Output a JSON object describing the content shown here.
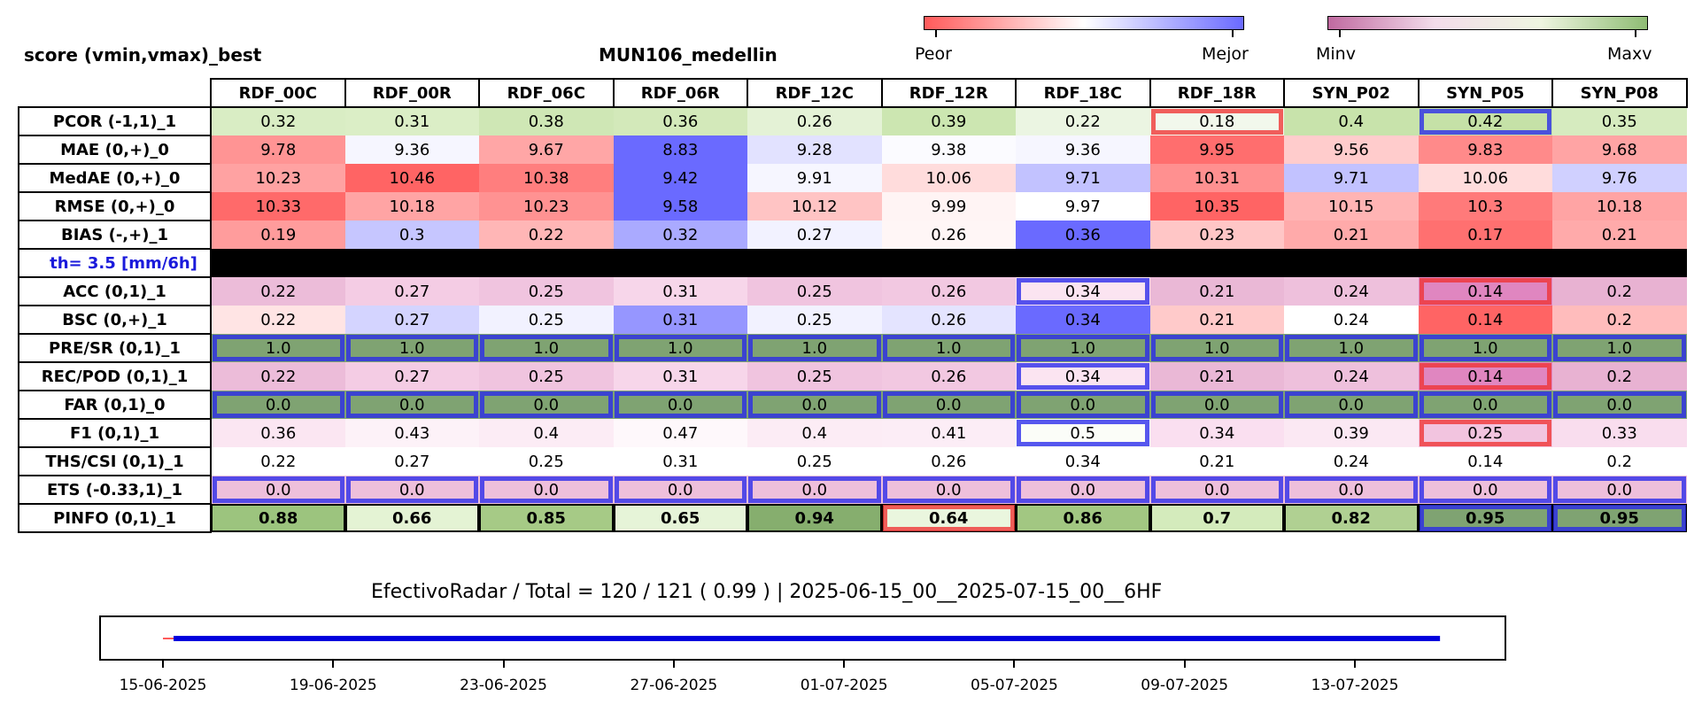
{
  "titles": {
    "left": "score (vmin,vmax)_best",
    "center": "MUN106_medellin"
  },
  "colorbars": {
    "score": {
      "low_label": "Peor",
      "high_label": "Mejor",
      "low_color": "#ff5a5a",
      "mid_color": "#ffffff",
      "high_color": "#6a6aff"
    },
    "range": {
      "low_label": "Minv",
      "high_label": "Maxv",
      "low_color": "#c06aa0",
      "high_color": "#8fbc74"
    }
  },
  "chart_data": {
    "type": "heatmap",
    "columns": [
      "RDF_00C",
      "RDF_00R",
      "RDF_06C",
      "RDF_06R",
      "RDF_12C",
      "RDF_12R",
      "RDF_18C",
      "RDF_18R",
      "SYN_P02",
      "SYN_P05",
      "SYN_P08"
    ],
    "threshold_label": "th= 3.5 [mm/6h]",
    "rows": [
      {
        "label": "PCOR (-1,1)_1",
        "values": [
          "0.32",
          "0.31",
          "0.38",
          "0.36",
          "0.26",
          "0.39",
          "0.22",
          "0.18",
          "0.4",
          "0.42",
          "0.35"
        ],
        "colors": [
          "#d9edc4",
          "#dbeec6",
          "#cfe7b5",
          "#d3e9ba",
          "#e4f2d6",
          "#cce6b1",
          "#ebf5e2",
          "#f2f8ec",
          "#c8e3ab",
          "#c5e1a7",
          "#d6ebbf"
        ],
        "best": [
          9
        ],
        "worst": [
          7
        ]
      },
      {
        "label": "MAE (0,+)_0",
        "values": [
          "9.78",
          "9.36",
          "9.67",
          "8.83",
          "9.28",
          "9.38",
          "9.36",
          "9.95",
          "9.56",
          "9.83",
          "9.68"
        ],
        "colors": [
          "#ff9494",
          "#f6f6ff",
          "#ffa6a6",
          "#6a6aff",
          "#e2e2ff",
          "#fbfbff",
          "#f6f6ff",
          "#ff6e6e",
          "#ffcccc",
          "#ff8a8a",
          "#ffa4a4"
        ],
        "best": [],
        "worst": []
      },
      {
        "label": "MedAE (0,+)_0",
        "values": [
          "10.23",
          "10.46",
          "10.38",
          "9.42",
          "9.91",
          "10.06",
          "9.71",
          "10.31",
          "9.71",
          "10.06",
          "9.76"
        ],
        "colors": [
          "#ffa2a2",
          "#ff6464",
          "#ff7e7e",
          "#6a6aff",
          "#f6f6ff",
          "#ffdcdc",
          "#c2c2ff",
          "#ff9090",
          "#c2c2ff",
          "#ffdcdc",
          "#d0d0ff"
        ],
        "best": [],
        "worst": []
      },
      {
        "label": "RMSE (0,+)_0",
        "values": [
          "10.33",
          "10.18",
          "10.23",
          "9.58",
          "10.12",
          "9.99",
          "9.97",
          "10.35",
          "10.15",
          "10.3",
          "10.18"
        ],
        "colors": [
          "#ff6a6a",
          "#ffa4a4",
          "#ff9292",
          "#6a6aff",
          "#ffc4c4",
          "#fff4f4",
          "#ffffff",
          "#ff6464",
          "#ffb4b4",
          "#ff7a7a",
          "#ffa4a4"
        ],
        "best": [],
        "worst": []
      },
      {
        "label": "BIAS (-,+)_1",
        "values": [
          "0.19",
          "0.3",
          "0.22",
          "0.32",
          "0.27",
          "0.26",
          "0.36",
          "0.23",
          "0.21",
          "0.17",
          "0.21"
        ],
        "colors": [
          "#ff9c9c",
          "#c6c6ff",
          "#ffb6b6",
          "#aaaaff",
          "#f2f2ff",
          "#fff6f6",
          "#6a6aff",
          "#ffc6c6",
          "#ffaaaa",
          "#ff7070",
          "#ffaaaa"
        ],
        "best": [],
        "worst": []
      },
      {
        "label": "ACC (0,1)_1",
        "values": [
          "0.22",
          "0.27",
          "0.25",
          "0.31",
          "0.25",
          "0.26",
          "0.34",
          "0.21",
          "0.24",
          "0.14",
          "0.2"
        ],
        "colors": [
          "#ecbcd9",
          "#f4ccE4",
          "#f0c4df",
          "#f7d6ea",
          "#f0c4df",
          "#f2c8e1",
          "#fbe4f1",
          "#eab8d6",
          "#eec0dc",
          "#e086c0",
          "#e8b2d2"
        ],
        "best": [
          6
        ],
        "worst": [
          9
        ]
      },
      {
        "label": "BSC (0,+)_1",
        "values": [
          "0.22",
          "0.27",
          "0.25",
          "0.31",
          "0.25",
          "0.26",
          "0.34",
          "0.21",
          "0.24",
          "0.14",
          "0.2"
        ],
        "colors": [
          "#ffe4e4",
          "#d4d4ff",
          "#f2f2ff",
          "#9696ff",
          "#f2f2ff",
          "#e4e4ff",
          "#6a6aff",
          "#ffcaca",
          "#ffffff",
          "#ff6464",
          "#ffbcbc"
        ],
        "best": [],
        "worst": []
      },
      {
        "label": "PRE/SR (0,1)_1",
        "values": [
          "1.0",
          "1.0",
          "1.0",
          "1.0",
          "1.0",
          "1.0",
          "1.0",
          "1.0",
          "1.0",
          "1.0",
          "1.0"
        ],
        "colors": [
          "#7fa372",
          "#7fa372",
          "#7fa372",
          "#7fa372",
          "#7fa372",
          "#7fa372",
          "#7fa372",
          "#7fa372",
          "#7fa372",
          "#7fa372",
          "#7fa372"
        ],
        "best": [
          0,
          1,
          2,
          3,
          4,
          5,
          6,
          7,
          8,
          9,
          10
        ],
        "worst": []
      },
      {
        "label": "REC/POD (0,1)_1",
        "values": [
          "0.22",
          "0.27",
          "0.25",
          "0.31",
          "0.25",
          "0.26",
          "0.34",
          "0.21",
          "0.24",
          "0.14",
          "0.2"
        ],
        "colors": [
          "#ecbcd9",
          "#f4cce4",
          "#f0c4df",
          "#f7d6ea",
          "#f0c4df",
          "#f2c8e1",
          "#fbe4f1",
          "#eab8d6",
          "#eec0dc",
          "#e086c0",
          "#e8b2d2"
        ],
        "best": [
          6
        ],
        "worst": [
          9
        ]
      },
      {
        "label": "FAR (0,1)_0",
        "values": [
          "0.0",
          "0.0",
          "0.0",
          "0.0",
          "0.0",
          "0.0",
          "0.0",
          "0.0",
          "0.0",
          "0.0",
          "0.0"
        ],
        "colors": [
          "#7fa372",
          "#7fa372",
          "#7fa372",
          "#7fa372",
          "#7fa372",
          "#7fa372",
          "#7fa372",
          "#7fa372",
          "#7fa372",
          "#7fa372",
          "#7fa372"
        ],
        "best": [
          0,
          1,
          2,
          3,
          4,
          5,
          6,
          7,
          8,
          9,
          10
        ],
        "worst": []
      },
      {
        "label": "F1 (0,1)_1",
        "values": [
          "0.36",
          "0.43",
          "0.4",
          "0.47",
          "0.4",
          "0.41",
          "0.5",
          "0.34",
          "0.39",
          "0.25",
          "0.33"
        ],
        "colors": [
          "#fbe6f2",
          "#fdf2f8",
          "#fcecf5",
          "#fef8fb",
          "#fcecf5",
          "#fcedf6",
          "#fbfdf8",
          "#fadff0",
          "#fbe8f3",
          "#f2c4df",
          "#f9ddee"
        ],
        "best": [
          6
        ],
        "worst": [
          9
        ]
      },
      {
        "label": "THS/CSI (0,1)_1",
        "values": [
          "0.22",
          "0.27",
          "0.25",
          "0.31",
          "0.25",
          "0.26",
          "0.34",
          "0.21",
          "0.24",
          "0.14",
          "0.2"
        ],
        "colors": [
          "#ffffff",
          "#ffffff",
          "#ffffff",
          "#ffffff",
          "#ffffff",
          "#ffffff",
          "#ffffff",
          "#ffffff",
          "#ffffff",
          "#ffffff",
          "#ffffff"
        ],
        "best": [],
        "worst": []
      },
      {
        "label": "ETS (-0.33,1)_1",
        "values": [
          "0.0",
          "0.0",
          "0.0",
          "0.0",
          "0.0",
          "0.0",
          "0.0",
          "0.0",
          "0.0",
          "0.0",
          "0.0"
        ],
        "colors": [
          "#eebfdb",
          "#eebfdb",
          "#eebfdb",
          "#eebfdb",
          "#eebfdb",
          "#eebfdb",
          "#eebfdb",
          "#eebfdb",
          "#eebfdb",
          "#eebfdb",
          "#eebfdb"
        ],
        "best": [
          0,
          1,
          2,
          3,
          4,
          5,
          6,
          7,
          8,
          9,
          10
        ],
        "worst": []
      },
      {
        "label": "PINFO (0,1)_1",
        "values": [
          "0.88",
          "0.66",
          "0.85",
          "0.65",
          "0.94",
          "0.64",
          "0.86",
          "0.7",
          "0.82",
          "0.95",
          "0.95"
        ],
        "colors": [
          "#9cc47e",
          "#e4f3d4",
          "#a6ca86",
          "#e6f4d8",
          "#86ae6e",
          "#eaf6de",
          "#a2c782",
          "#d4ebbc",
          "#b0d092",
          "#7fa372",
          "#7fa372"
        ],
        "best": [
          9,
          10
        ],
        "worst": [
          5
        ]
      }
    ],
    "timeline": {
      "x_ticks": [
        "15-06-2025",
        "19-06-2025",
        "23-06-2025",
        "27-06-2025",
        "01-07-2025",
        "05-07-2025",
        "09-07-2025",
        "13-07-2025"
      ],
      "x_range": [
        "2025-06-14",
        "2025-07-17"
      ],
      "series": [
        {
          "start": "2025-06-15T00:00",
          "end": "2025-06-15T06:00",
          "color": "#ff5a5a"
        },
        {
          "start": "2025-06-15T06:00",
          "end": "2025-07-15T00:00",
          "color": "#0000dd"
        }
      ]
    }
  },
  "summary_text": "EfectivoRadar / Total  =  120 / 121 ( 0.99 ) | 2025-06-15_00__2025-07-15_00__6HF"
}
